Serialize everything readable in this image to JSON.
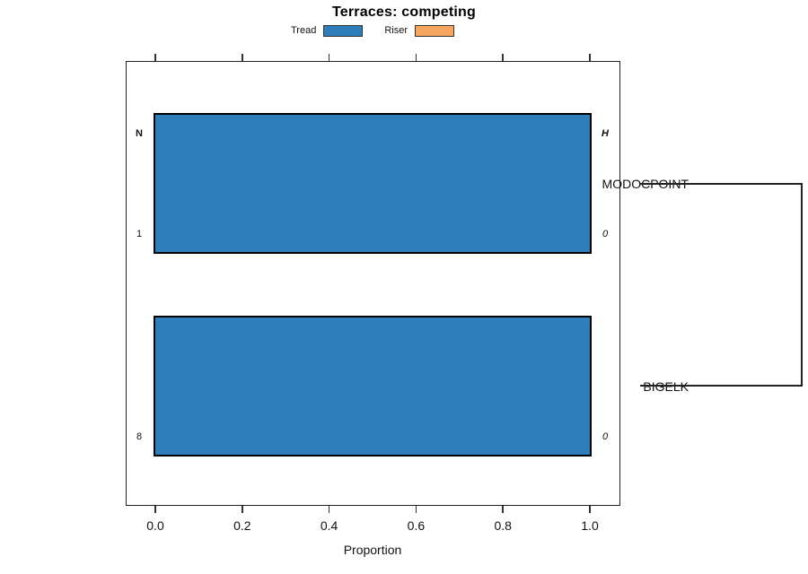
{
  "chart_data": {
    "type": "bar",
    "orientation": "horizontal",
    "title": "Terraces: competing",
    "xlabel": "Proportion",
    "xlim": [
      0,
      1
    ],
    "x_ticks": [
      0,
      0.2,
      0.4,
      0.6,
      0.8,
      1
    ],
    "x_tick_labels": [
      "0.0",
      "0.2",
      "0.4",
      "0.6",
      "0.8",
      "1.0"
    ],
    "grid": false,
    "legend_position": "top-center",
    "legend": [
      {
        "label": "Tread",
        "color": "#2e7ebc"
      },
      {
        "label": "Riser",
        "color": "#f6a65e"
      }
    ],
    "categories": [
      "MODOCPOINT",
      "BIGELK"
    ],
    "series": [
      {
        "name": "Tread",
        "values": [
          1.0,
          1.0
        ]
      },
      {
        "name": "Riser",
        "values": [
          0.0,
          0.0
        ]
      }
    ],
    "bar_annotations": {
      "left_header": "N",
      "right_header": "H",
      "rows": [
        {
          "category": "MODOCPOINT",
          "left": "1",
          "right": "0"
        },
        {
          "category": "BIGELK",
          "left": "8",
          "right": "0"
        }
      ]
    },
    "right_bracket": {
      "connects": [
        "MODOCPOINT",
        "BIGELK"
      ],
      "side": "right"
    },
    "colors": {
      "bar_fill": "#2e7ebc",
      "bar_border": "#000000",
      "axis": "#222222"
    }
  }
}
